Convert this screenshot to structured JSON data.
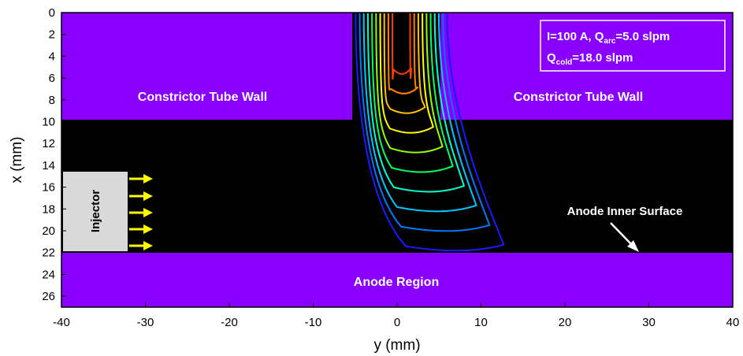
{
  "axes": {
    "x_label": "y (mm)",
    "y_label": "x (mm)",
    "x_ticks": [
      -40,
      -30,
      -20,
      -10,
      0,
      10,
      20,
      30,
      40
    ],
    "y_ticks": [
      0,
      2,
      4,
      6,
      8,
      10,
      12,
      14,
      16,
      18,
      20,
      22,
      24,
      26
    ]
  },
  "regions": {
    "constrictor_left": "Constrictor Tube Wall",
    "constrictor_right": "Constrictor Tube Wall",
    "anode": "Anode Region",
    "injector": "Injector",
    "anode_surface": "Anode Inner Surface"
  },
  "conditions": {
    "current": "I=100 A, Q",
    "current_sub": "arc",
    "arc_flow": "=5.0 slpm",
    "cold_prefix": "Q",
    "cold_sub": "cold",
    "cold_flow": "=18.0 slpm"
  },
  "colors": {
    "wall": "#8a00ff",
    "plasma_bg": "#000000",
    "injector": "#d9d9d9",
    "arrows": "#ffff00",
    "contours": [
      "#1a1aff",
      "#0077ff",
      "#00c8ff",
      "#00ffd0",
      "#00ff60",
      "#90ff00",
      "#ffff00",
      "#ffc000",
      "#ff8000",
      "#ff4000"
    ]
  }
}
